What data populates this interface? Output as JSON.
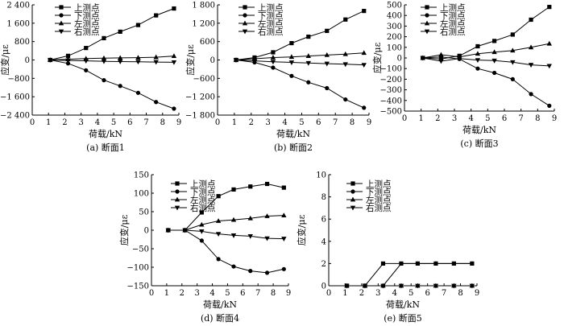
{
  "chart_data": [
    {
      "type": "line",
      "caption": "(a) 断面1",
      "xlabel": "荷载/kN",
      "ylabel": "应变/με",
      "xlim": [
        0,
        9
      ],
      "ylim": [
        -2400,
        2400
      ],
      "xticks": [
        0,
        1,
        2,
        3,
        4,
        5,
        6,
        7,
        8,
        9
      ],
      "yticks": [
        -2400,
        -1600,
        -800,
        0,
        800,
        1600,
        2400
      ],
      "ytick_labels": [
        "−2 400",
        "−1 600",
        "−800",
        "0",
        "800",
        "1 600",
        "2 400"
      ],
      "x": [
        1.1,
        2.2,
        3.3,
        4.4,
        5.4,
        6.5,
        7.6,
        8.7
      ],
      "series": [
        {
          "name": "上测点",
          "marker": "square",
          "values": [
            0,
            180,
            520,
            950,
            1230,
            1520,
            1940,
            2240
          ]
        },
        {
          "name": "下测点",
          "marker": "circle",
          "values": [
            0,
            -150,
            -450,
            -880,
            -1130,
            -1430,
            -1830,
            -2120
          ]
        },
        {
          "name": "左测点",
          "marker": "triangle-up",
          "values": [
            0,
            30,
            60,
            80,
            90,
            100,
            120,
            170
          ]
        },
        {
          "name": "右测点",
          "marker": "triangle-down",
          "values": [
            0,
            -20,
            -40,
            -60,
            -70,
            -80,
            -90,
            -100
          ]
        }
      ]
    },
    {
      "type": "line",
      "caption": "(b) 断面2",
      "xlabel": "荷载/kN",
      "ylabel": "应变/με",
      "xlim": [
        0,
        9
      ],
      "ylim": [
        -1800,
        1800
      ],
      "xticks": [
        0,
        1,
        2,
        3,
        4,
        5,
        6,
        7,
        8,
        9
      ],
      "yticks": [
        -1800,
        -1200,
        -600,
        0,
        600,
        1200,
        1800
      ],
      "ytick_labels": [
        "−1 800",
        "−1 200",
        "−600",
        "0",
        "600",
        "1 200",
        "1 800"
      ],
      "x": [
        1.1,
        2.2,
        3.3,
        4.4,
        5.4,
        6.5,
        7.6,
        8.7
      ],
      "series": [
        {
          "name": "上测点",
          "marker": "square",
          "values": [
            0,
            80,
            250,
            550,
            760,
            950,
            1320,
            1600
          ]
        },
        {
          "name": "下测点",
          "marker": "circle",
          "values": [
            0,
            -80,
            -250,
            -520,
            -730,
            -920,
            -1290,
            -1560
          ]
        },
        {
          "name": "左测点",
          "marker": "triangle-up",
          "values": [
            0,
            40,
            80,
            100,
            130,
            160,
            190,
            230
          ]
        },
        {
          "name": "右测点",
          "marker": "triangle-down",
          "values": [
            0,
            -30,
            -60,
            -80,
            -100,
            -120,
            -140,
            -160
          ]
        }
      ]
    },
    {
      "type": "line",
      "caption": "(c) 断面3",
      "xlabel": "荷载/kN",
      "ylabel": "应变/με",
      "xlim": [
        0,
        9
      ],
      "ylim": [
        -500,
        500
      ],
      "xticks": [
        0,
        1,
        2,
        3,
        4,
        5,
        6,
        7,
        8,
        9
      ],
      "yticks": [
        -500,
        -400,
        -300,
        -200,
        -100,
        0,
        100,
        200,
        300,
        400,
        500
      ],
      "ytick_labels": [
        "−500",
        "−400",
        "−300",
        "−200",
        "−100",
        "0",
        "100",
        "200",
        "300",
        "400",
        "500"
      ],
      "x": [
        1.1,
        2.2,
        3.3,
        4.4,
        5.4,
        6.5,
        7.6,
        8.7
      ],
      "series": [
        {
          "name": "上测点",
          "marker": "square",
          "values": [
            0,
            -10,
            20,
            110,
            160,
            220,
            360,
            480
          ]
        },
        {
          "name": "下测点",
          "marker": "circle",
          "values": [
            0,
            10,
            -10,
            -100,
            -140,
            -200,
            -340,
            -450
          ]
        },
        {
          "name": "左测点",
          "marker": "triangle-up",
          "values": [
            0,
            30,
            10,
            40,
            55,
            70,
            100,
            135
          ]
        },
        {
          "name": "右测点",
          "marker": "triangle-down",
          "values": [
            0,
            -30,
            -5,
            -20,
            -25,
            -40,
            -65,
            -75
          ]
        }
      ]
    },
    {
      "type": "line",
      "caption": "(d) 断面4",
      "xlabel": "荷载/kN",
      "ylabel": "应变/με",
      "xlim": [
        0,
        9
      ],
      "ylim": [
        -150,
        150
      ],
      "xticks": [
        0,
        1,
        2,
        3,
        4,
        5,
        6,
        7,
        8,
        9
      ],
      "yticks": [
        -150,
        -100,
        -50,
        0,
        50,
        100,
        150
      ],
      "ytick_labels": [
        "−150",
        "−100",
        "−50",
        "0",
        "50",
        "100",
        "150"
      ],
      "x": [
        1.1,
        2.2,
        3.3,
        4.4,
        5.4,
        6.5,
        7.6,
        8.7
      ],
      "series": [
        {
          "name": "上测点",
          "marker": "square",
          "values": [
            0,
            0,
            48,
            92,
            110,
            118,
            125,
            115
          ]
        },
        {
          "name": "下测点",
          "marker": "circle",
          "values": [
            0,
            0,
            -28,
            -78,
            -98,
            -110,
            -115,
            -105
          ]
        },
        {
          "name": "左测点",
          "marker": "triangle-up",
          "values": [
            0,
            0,
            15,
            25,
            28,
            32,
            38,
            40
          ]
        },
        {
          "name": "右测点",
          "marker": "triangle-down",
          "values": [
            0,
            0,
            -3,
            -10,
            -14,
            -16,
            -22,
            -23
          ]
        }
      ]
    },
    {
      "type": "line",
      "caption": "(e) 断面5",
      "xlabel": "荷载/kN",
      "ylabel": "应变/με",
      "xlim": [
        0,
        9
      ],
      "ylim": [
        0,
        10
      ],
      "xticks": [
        0,
        1,
        2,
        3,
        4,
        5,
        6,
        7,
        8,
        9
      ],
      "yticks": [
        0,
        2,
        4,
        6,
        8,
        10
      ],
      "ytick_labels": [
        "0",
        "2",
        "4",
        "6",
        "8",
        "10"
      ],
      "x": [
        1.1,
        2.2,
        3.3,
        4.4,
        5.4,
        6.5,
        7.6,
        8.7
      ],
      "series": [
        {
          "name": "上测点",
          "marker": "square",
          "values": [
            0,
            0,
            2,
            2,
            2,
            2,
            2,
            2
          ]
        },
        {
          "name": "下测点",
          "marker": "circle",
          "values": [
            0,
            0,
            0,
            2,
            2,
            2,
            2,
            2
          ]
        },
        {
          "name": "左测点",
          "marker": "triangle-up",
          "values": [
            0,
            0,
            0,
            0,
            0,
            0,
            0,
            0
          ]
        },
        {
          "name": "右测点",
          "marker": "triangle-down",
          "values": [
            0,
            0,
            0,
            0,
            0,
            0,
            0,
            0
          ]
        }
      ]
    }
  ]
}
